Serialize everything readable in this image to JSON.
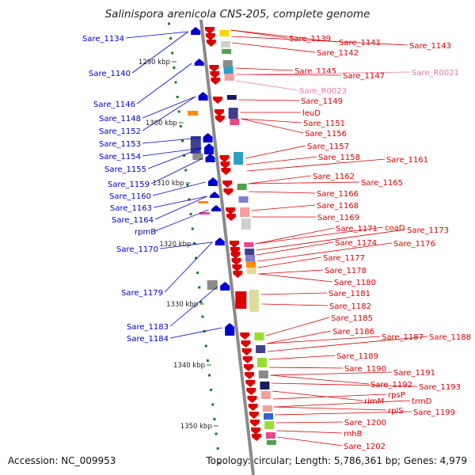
{
  "title": "Salinispora arenicola CNS-205, complete genome",
  "footer": {
    "accession": "Accession: NC_009953",
    "summary": "Topology: circular; Length: 5,786,361 bp; Genes: 4,979"
  },
  "colors": {
    "forward": "#0000cc",
    "reverse": "#dd0000",
    "rna": "#ee77aa",
    "axis": "#8a8a8a",
    "ruler": "#1e7a1e"
  },
  "ruler_labels": [
    "1290 kbp",
    "1300 kbp",
    "1310 kbp",
    "1320 kbp",
    "1330 kbp",
    "1340 kbp",
    "1350 kbp"
  ],
  "forward_labels": [
    "Sare_1134",
    "Sare_1140",
    "Sare_1146",
    "Sare_1148",
    "Sare_1152",
    "Sare_1153",
    "Sare_1154",
    "Sare_1155",
    "Sare_1159",
    "Sare_1160",
    "Sare_1163",
    "Sare_1164",
    "rpmB",
    "Sare_1170",
    "Sare_1179",
    "Sare_1183",
    "Sare_1184"
  ],
  "reverse_labels": [
    "Sare_1139",
    "Sare_1141",
    "Sare_1143",
    "Sare_1142",
    "Sare_1145",
    "Sare_1147",
    "Sare_R0021",
    "Sare_R0023",
    "Sare_1149",
    "leuD",
    "Sare_1151",
    "Sare_1156",
    "Sare_1157",
    "Sare_1158",
    "Sare_1161",
    "Sare_1162",
    "Sare_1165",
    "Sare_1166",
    "Sare_1168",
    "Sare_1169",
    "Sare_1171",
    "coaD",
    "Sare_1173",
    "Sare_1174",
    "Sare_1176",
    "Sare_1177",
    "Sare_1178",
    "Sare_1180",
    "Sare_1181",
    "Sare_1182",
    "Sare_1185",
    "Sare_1186",
    "Sare_1187",
    "Sare_1188",
    "Sare_1189",
    "Sare_1190",
    "Sare_1191",
    "Sare_1192",
    "Sare_1193",
    "rimM",
    "rpsP",
    "trmD",
    "rplS",
    "Sare_1199",
    "Sare_1200",
    "rnhB",
    "Sare_1202"
  ]
}
